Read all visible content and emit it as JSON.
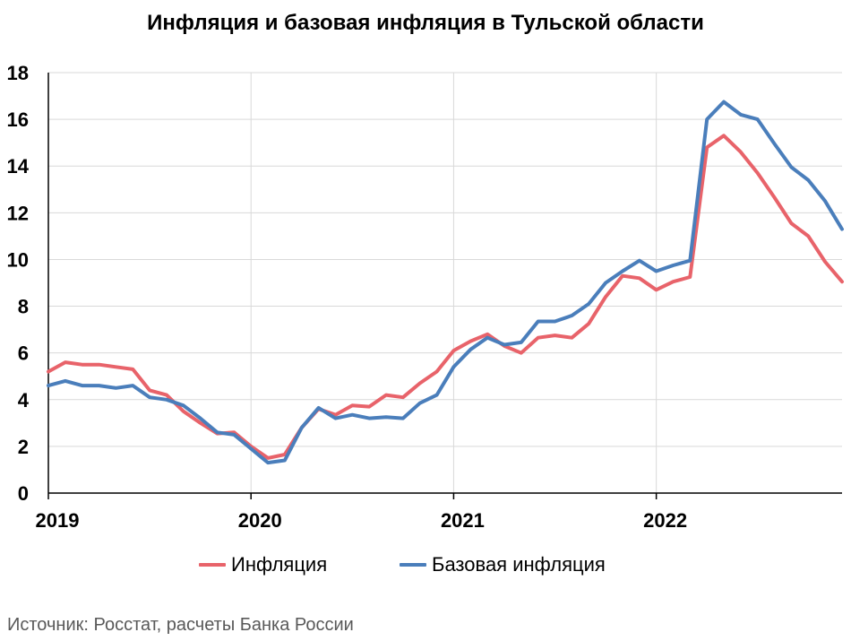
{
  "chart_data": {
    "type": "line",
    "title": "Инфляция и базовая инфляция в Тульской области",
    "xlabel": "",
    "ylabel": "",
    "ylim": [
      0,
      18
    ],
    "yticks": [
      "0",
      "2",
      "4",
      "6",
      "8",
      "10",
      "12",
      "14",
      "16",
      "18"
    ],
    "xticks": [
      "2019",
      "2020",
      "2021",
      "2022"
    ],
    "grid": true,
    "legend_position": "bottom",
    "x_start": "2019-01",
    "x_end": "2022-12",
    "series": [
      {
        "name": "Инфляция",
        "color": "#e8636a",
        "values": [
          5.2,
          5.6,
          5.5,
          5.5,
          5.4,
          5.3,
          4.4,
          4.2,
          3.5,
          3.0,
          2.55,
          2.6,
          2.0,
          1.5,
          1.65,
          2.8,
          3.6,
          3.35,
          3.75,
          3.7,
          4.2,
          4.1,
          4.7,
          5.2,
          6.1,
          6.5,
          6.8,
          6.3,
          6.0,
          6.65,
          6.75,
          6.65,
          7.25,
          8.4,
          9.3,
          9.2,
          8.7,
          9.05,
          9.25,
          14.8,
          15.3,
          14.6,
          13.7,
          12.65,
          11.55,
          11.0,
          9.9,
          9.05
        ]
      },
      {
        "name": "Базовая инфляция",
        "color": "#4a7ebb",
        "values": [
          4.6,
          4.8,
          4.6,
          4.6,
          4.5,
          4.6,
          4.1,
          4.0,
          3.75,
          3.2,
          2.6,
          2.5,
          1.9,
          1.3,
          1.4,
          2.8,
          3.65,
          3.2,
          3.35,
          3.2,
          3.25,
          3.2,
          3.85,
          4.2,
          5.4,
          6.15,
          6.65,
          6.35,
          6.45,
          7.35,
          7.35,
          7.6,
          8.1,
          9.0,
          9.5,
          9.95,
          9.5,
          9.75,
          9.95,
          16.0,
          16.75,
          16.2,
          16.0,
          14.95,
          13.95,
          13.4,
          12.5,
          11.3
        ]
      }
    ]
  },
  "footer": {
    "source": "Источник: Росстат, расчеты Банка России"
  }
}
